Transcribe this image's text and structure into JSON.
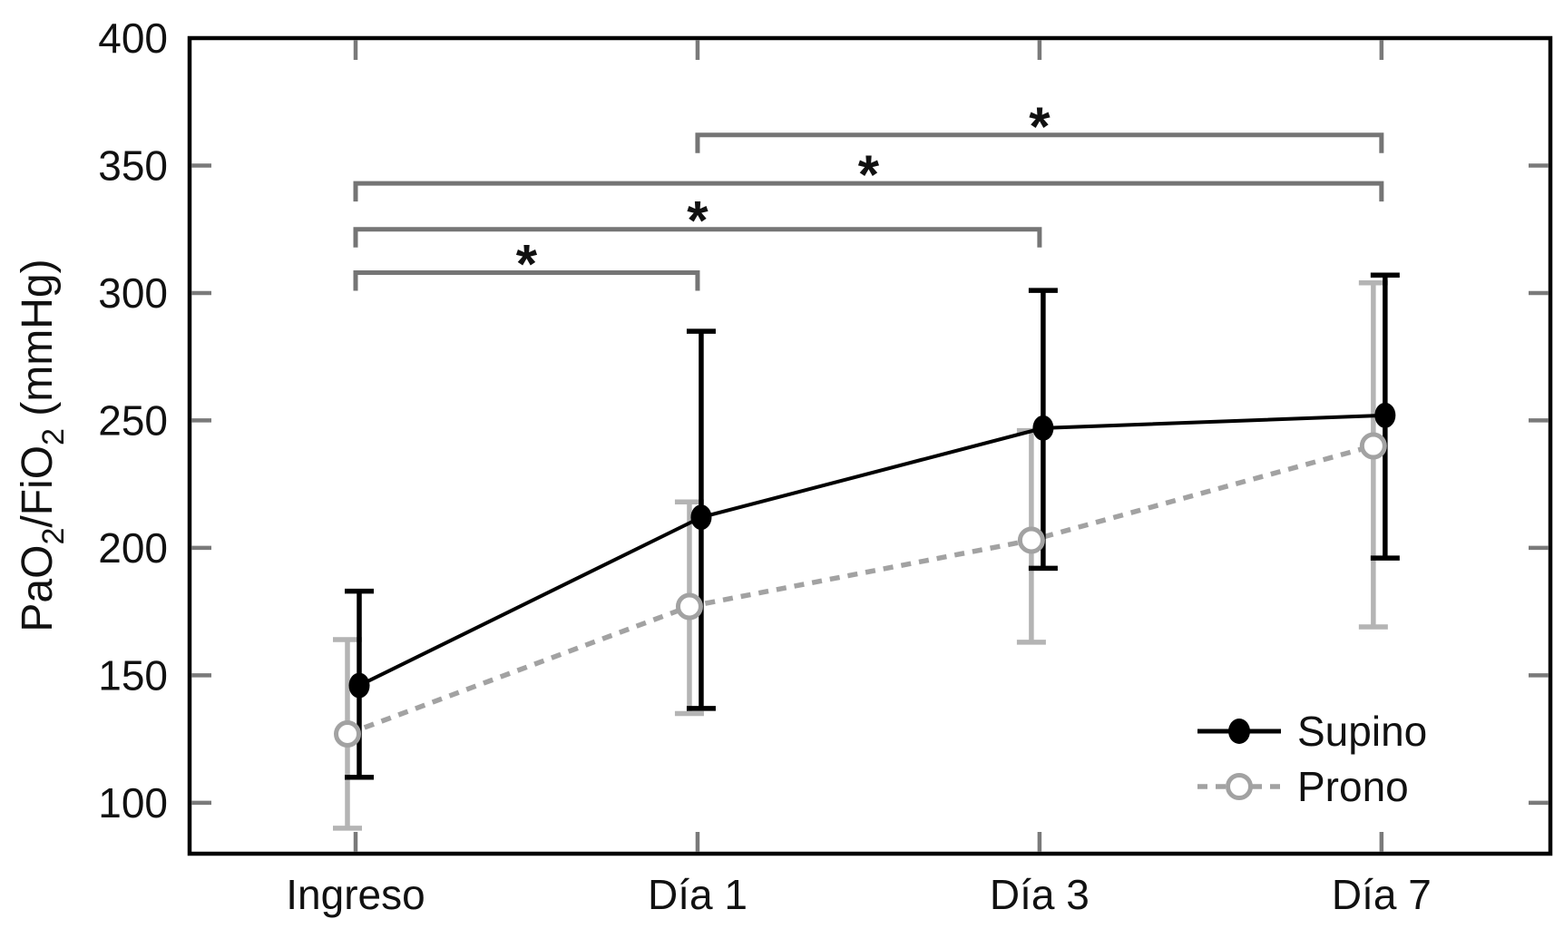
{
  "figure": {
    "background": "#ffffff",
    "frame_color": "#000000",
    "tick_color": "#7a7a7a",
    "text_color": "#111111"
  },
  "chart_data": {
    "type": "line",
    "title": "",
    "xlabel": "",
    "ylabel_plain": "PaO2/FiO2 (mmHg)",
    "ylabel_parts": [
      {
        "text": "PaO"
      },
      {
        "text": "2",
        "subscript": true
      },
      {
        "text": "/FiO"
      },
      {
        "text": "2",
        "subscript": true
      },
      {
        "text": " (mmHg)"
      }
    ],
    "categories": [
      "Ingreso",
      "Día 1",
      "Día 3",
      "Día 7"
    ],
    "ylim": [
      80,
      400
    ],
    "yticks": [
      100,
      150,
      200,
      250,
      300,
      350,
      400
    ],
    "grid": false,
    "series": [
      {
        "name": "Supino",
        "line_style": "solid",
        "marker": "filled-circle",
        "color": "#000000",
        "error_color": "#000000",
        "values": [
          146,
          212,
          247,
          252
        ],
        "err_high": [
          183,
          285,
          301,
          307
        ],
        "err_low": [
          110,
          137,
          192,
          196
        ]
      },
      {
        "name": "Prono",
        "line_style": "dashed",
        "marker": "open-circle",
        "color": "#a2a2a2",
        "error_color": "#b4b4b4",
        "values": [
          127,
          177,
          203,
          240
        ],
        "err_high": [
          164,
          218,
          246,
          304
        ],
        "err_low": [
          90,
          135,
          163,
          169
        ]
      }
    ],
    "significance_brackets": [
      {
        "from": "Ingreso",
        "to": "Día 1",
        "y": 308,
        "label": "*"
      },
      {
        "from": "Ingreso",
        "to": "Día 3",
        "y": 325,
        "label": "*"
      },
      {
        "from": "Ingreso",
        "to": "Día 7",
        "y": 343,
        "label": "*"
      },
      {
        "from": "Día 1",
        "to": "Día 7",
        "y": 362,
        "label": "*"
      }
    ],
    "bracket_color": "#757575",
    "legend": {
      "position": "bottom-right",
      "entries": [
        "Supino",
        "Prono"
      ]
    }
  }
}
